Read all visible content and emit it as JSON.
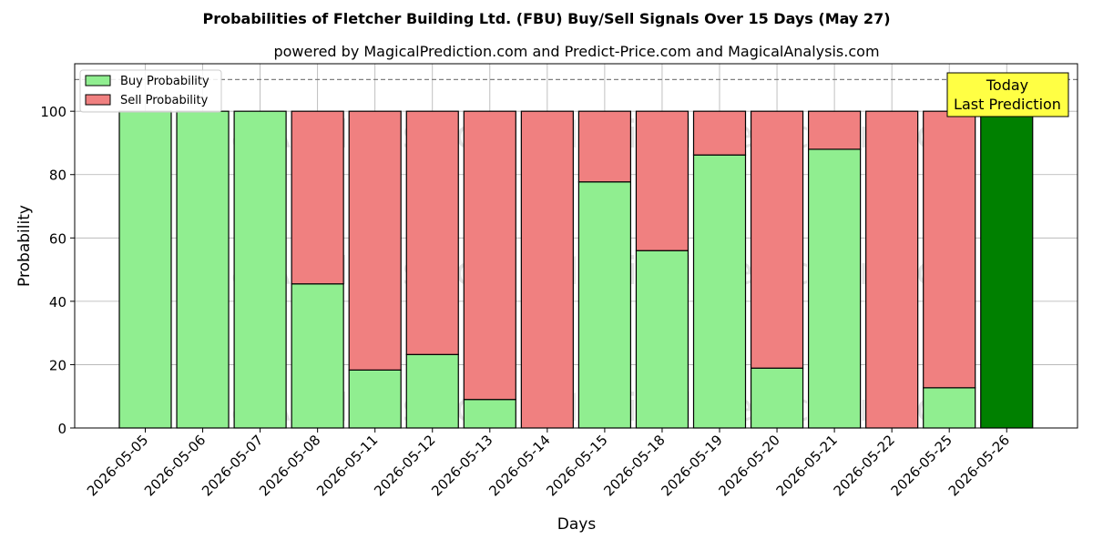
{
  "chart_data": {
    "type": "bar",
    "stacked": true,
    "title": "Probabilities of Fletcher Building Ltd. (FBU) Buy/Sell Signals Over 15 Days (May 27)",
    "subtitle": "powered by MagicalPrediction.com and Predict-Price.com and MagicalAnalysis.com",
    "xlabel": "Days",
    "ylabel": "Probability",
    "ylim": [
      0,
      115
    ],
    "yticks": [
      0,
      20,
      40,
      60,
      80,
      100
    ],
    "grid": true,
    "legend_position": "top-left",
    "reference_line": 110,
    "categories": [
      "2026-05-05",
      "2026-05-06",
      "2026-05-07",
      "2026-05-08",
      "2026-05-11",
      "2026-05-12",
      "2026-05-13",
      "2026-05-14",
      "2026-05-15",
      "2026-05-18",
      "2026-05-19",
      "2026-05-20",
      "2026-05-21",
      "2026-05-22",
      "2026-05-25",
      "2026-05-26"
    ],
    "series": [
      {
        "name": "Buy Probability",
        "color": "#90ee90",
        "values": [
          100,
          100,
          100,
          45.5,
          18.3,
          23.2,
          9,
          0,
          77.7,
          56,
          86.2,
          18.9,
          88,
          0,
          12.7,
          100
        ]
      },
      {
        "name": "Sell Probability",
        "color": "#f08080",
        "values": [
          0,
          0,
          0,
          54.5,
          81.7,
          76.8,
          91,
          100,
          22.3,
          44,
          13.8,
          81.1,
          12,
          100,
          87.3,
          0
        ]
      }
    ],
    "highlight": {
      "index": 15,
      "color": "#008000"
    },
    "annotation": {
      "lines": [
        "Today",
        "Last Prediction"
      ],
      "background": "#ffff44"
    },
    "watermarks": [
      "MagicalAnalysis.com",
      "MagicalPrediction.com"
    ]
  }
}
